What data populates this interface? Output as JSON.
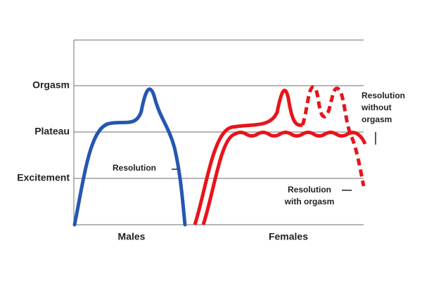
{
  "levels": [
    "Orgasm",
    "Plateau",
    "Excitement"
  ],
  "groups": [
    "Males",
    "Females"
  ],
  "annotations": [
    {
      "lines": [
        "Resolution"
      ]
    },
    {
      "lines": [
        "Resolution",
        "without",
        "orgasm"
      ]
    },
    {
      "lines": [
        "Resolution",
        "with orgasm"
      ]
    }
  ]
}
